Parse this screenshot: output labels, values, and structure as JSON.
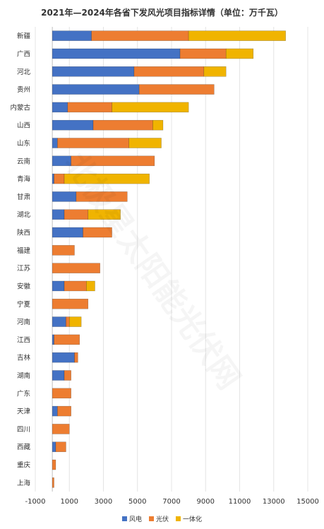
{
  "chart_data": {
    "type": "bar",
    "orientation": "horizontal",
    "stacked": true,
    "title": "2021年—2024年各省下发风光项目指标详情（单位：万千瓦）",
    "categories": [
      "新疆",
      "广西",
      "河北",
      "贵州",
      "内蒙古",
      "山西",
      "山东",
      "云南",
      "青海",
      "甘肃",
      "湖北",
      "陕西",
      "福建",
      "江苏",
      "安徽",
      "宁夏",
      "河南",
      "江西",
      "吉林",
      "湖南",
      "广东",
      "天津",
      "四川",
      "西藏",
      "重庆",
      "上海"
    ],
    "series": [
      {
        "name": "风电",
        "color": "#4472c4",
        "values": [
          2300,
          7500,
          4800,
          5100,
          900,
          2400,
          300,
          1100,
          100,
          1400,
          700,
          1800,
          0,
          0,
          700,
          0,
          800,
          100,
          1300,
          700,
          0,
          300,
          0,
          200,
          0,
          0
        ]
      },
      {
        "name": "光伏",
        "color": "#ed7d31",
        "values": [
          5700,
          2700,
          4100,
          4400,
          2600,
          3500,
          4200,
          4900,
          600,
          3000,
          1400,
          1700,
          1300,
          2800,
          1300,
          2100,
          200,
          1500,
          200,
          400,
          1100,
          800,
          1000,
          600,
          200,
          100
        ]
      },
      {
        "name": "一体化",
        "color": "#f0b400",
        "values": [
          5700,
          1600,
          1300,
          0,
          4500,
          600,
          1900,
          0,
          5000,
          0,
          1900,
          0,
          0,
          0,
          500,
          0,
          700,
          0,
          0,
          0,
          0,
          0,
          0,
          0,
          0,
          0
        ]
      }
    ],
    "xticks": [
      -1000,
      1000,
      3000,
      5000,
      7000,
      9000,
      11000,
      13000,
      15000
    ],
    "xlim": [
      -1000,
      15000
    ],
    "grid": true,
    "legend_position": "bottom",
    "watermark": "北极星太阳能光伏网"
  }
}
